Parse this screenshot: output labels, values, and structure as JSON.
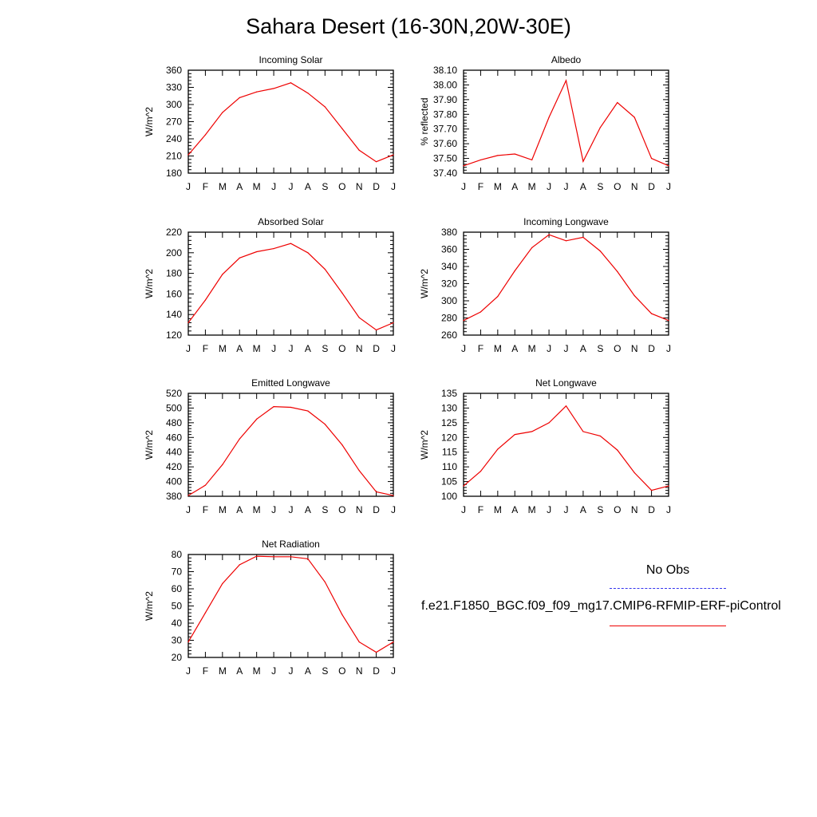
{
  "figure": {
    "title": "Sahara Desert (16-30N,20W-30E)"
  },
  "legend": {
    "obs_label": "No Obs",
    "case_label": "f.e21.F1850_BGC.f09_f09_mg17.CMIP6-RFMIP-ERF-piControl",
    "obs_color": "#3333ee",
    "case_color": "#ee0000"
  },
  "chart_data": [
    {
      "type": "line",
      "title": "Incoming Solar",
      "ylabel": "W/m^2",
      "xlabel": "",
      "categories": [
        "J",
        "F",
        "M",
        "A",
        "M",
        "J",
        "J",
        "A",
        "S",
        "O",
        "N",
        "D",
        "J"
      ],
      "ylim": [
        180,
        360
      ],
      "yticks": [
        "180",
        "210",
        "240",
        "270",
        "300",
        "330",
        "360"
      ],
      "series": [
        {
          "values": [
            212,
            247,
            286,
            312,
            322,
            328,
            338,
            320,
            296,
            258,
            220,
            200,
            212
          ]
        }
      ]
    },
    {
      "type": "line",
      "title": "Albedo",
      "ylabel": "% reflected",
      "xlabel": "",
      "categories": [
        "J",
        "F",
        "M",
        "A",
        "M",
        "J",
        "J",
        "A",
        "S",
        "O",
        "N",
        "D",
        "J"
      ],
      "ylim": [
        37.4,
        38.1
      ],
      "yticks": [
        "37.40",
        "37.50",
        "37.60",
        "37.70",
        "37.80",
        "37.90",
        "38.00",
        "38.10"
      ],
      "series": [
        {
          "values": [
            37.45,
            37.49,
            37.52,
            37.53,
            37.49,
            37.78,
            38.03,
            37.48,
            37.71,
            37.88,
            37.78,
            37.5,
            37.45
          ]
        }
      ]
    },
    {
      "type": "line",
      "title": "Absorbed Solar",
      "ylabel": "W/m^2",
      "xlabel": "",
      "categories": [
        "J",
        "F",
        "M",
        "A",
        "M",
        "J",
        "J",
        "A",
        "S",
        "O",
        "N",
        "D",
        "J"
      ],
      "ylim": [
        120,
        220
      ],
      "yticks": [
        "120",
        "140",
        "160",
        "180",
        "200",
        "220"
      ],
      "series": [
        {
          "values": [
            132,
            154,
            179,
            195,
            201,
            204,
            209,
            200,
            184,
            161,
            137,
            125,
            132
          ]
        }
      ]
    },
    {
      "type": "line",
      "title": "Incoming Longwave",
      "ylabel": "W/m^2",
      "xlabel": "",
      "categories": [
        "J",
        "F",
        "M",
        "A",
        "M",
        "J",
        "J",
        "A",
        "S",
        "O",
        "N",
        "D",
        "J"
      ],
      "ylim": [
        260,
        380
      ],
      "yticks": [
        "260",
        "280",
        "300",
        "320",
        "340",
        "360",
        "380"
      ],
      "series": [
        {
          "values": [
            277,
            287,
            305,
            335,
            362,
            377,
            370,
            374,
            358,
            334,
            306,
            285,
            277
          ]
        }
      ]
    },
    {
      "type": "line",
      "title": "Emitted Longwave",
      "ylabel": "W/m^2",
      "xlabel": "",
      "categories": [
        "J",
        "F",
        "M",
        "A",
        "M",
        "J",
        "J",
        "A",
        "S",
        "O",
        "N",
        "D",
        "J"
      ],
      "ylim": [
        380,
        520
      ],
      "yticks": [
        "380",
        "400",
        "420",
        "440",
        "460",
        "480",
        "500",
        "520"
      ],
      "series": [
        {
          "values": [
            381,
            395,
            423,
            458,
            485,
            502,
            501,
            496,
            478,
            450,
            415,
            386,
            381
          ]
        }
      ]
    },
    {
      "type": "line",
      "title": "Net Longwave",
      "ylabel": "W/m^2",
      "xlabel": "",
      "categories": [
        "J",
        "F",
        "M",
        "A",
        "M",
        "J",
        "J",
        "A",
        "S",
        "O",
        "N",
        "D",
        "J"
      ],
      "ylim": [
        100,
        135
      ],
      "yticks": [
        "100",
        "105",
        "110",
        "115",
        "120",
        "125",
        "130",
        "135"
      ],
      "series": [
        {
          "values": [
            103.5,
            108.5,
            116,
            121,
            122,
            125,
            130.7,
            122,
            120.5,
            115.7,
            108,
            102,
            103.5
          ]
        }
      ]
    },
    {
      "type": "line",
      "title": "Net Radiation",
      "ylabel": "W/m^2",
      "xlabel": "",
      "categories": [
        "J",
        "F",
        "M",
        "A",
        "M",
        "J",
        "J",
        "A",
        "S",
        "O",
        "N",
        "D",
        "J"
      ],
      "ylim": [
        20,
        80
      ],
      "yticks": [
        "20",
        "30",
        "40",
        "50",
        "60",
        "70",
        "80"
      ],
      "series": [
        {
          "values": [
            29,
            46,
            63,
            74,
            79,
            78.7,
            78.7,
            77.5,
            64,
            45,
            29,
            23,
            29
          ]
        }
      ]
    }
  ]
}
